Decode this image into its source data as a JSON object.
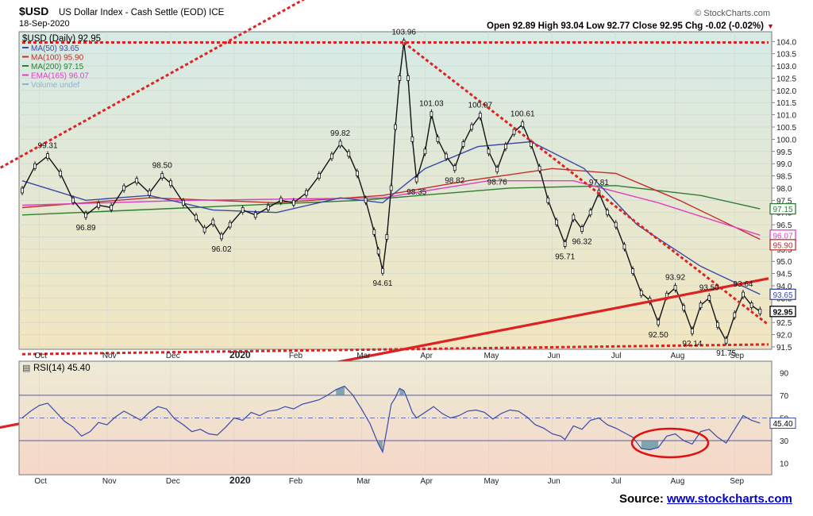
{
  "header": {
    "symbol": "$USD",
    "description": "US Dollar Index - Cash Settle (EOD) ICE",
    "date": "18-Sep-2020",
    "brand": "© StockCharts.com",
    "ohlc": "Open 92.89 High 93.04 Low 92.77 Close 92.95 Chg -0.02 (-0.02%)"
  },
  "legend": {
    "main": "$USD (Daily) 92.95",
    "items": [
      {
        "label": "MA(50) 93.65",
        "color": "#3a48a8"
      },
      {
        "label": "MA(100) 95.90",
        "color": "#c0302a"
      },
      {
        "label": "MA(200) 97.15",
        "color": "#2e7d32"
      },
      {
        "label": "EMA(165) 96.07",
        "color": "#e040c0"
      },
      {
        "label": "Volume undef",
        "color": "#8fb0d8"
      }
    ]
  },
  "rsi": {
    "label": "RSI(14) 45.40",
    "value_tag": "45.40",
    "levels": [
      90,
      70,
      50,
      30,
      10
    ]
  },
  "source": {
    "prefix": "Source: ",
    "link": "www.stockcharts.com"
  },
  "chart_data": {
    "type": "line",
    "title": "US Dollar Index - Cash Settle (EOD) ICE",
    "ylim": [
      91.4,
      104.4
    ],
    "yticks": [
      91.5,
      92.0,
      92.5,
      93.0,
      93.5,
      94.0,
      94.5,
      95.0,
      95.5,
      96.0,
      96.5,
      97.0,
      97.5,
      98.0,
      98.5,
      99.0,
      99.5,
      100.0,
      100.5,
      101.0,
      101.5,
      102.0,
      102.5,
      103.0,
      103.5,
      104.0
    ],
    "xticks": [
      "Oct",
      "Nov",
      "Dec",
      "2020",
      "Feb",
      "Mar",
      "Apr",
      "May",
      "Jun",
      "Jul",
      "Aug",
      "Sep"
    ],
    "price_points": [
      [
        0,
        97.9
      ],
      [
        6,
        98.9
      ],
      [
        12,
        99.31
      ],
      [
        18,
        98.6
      ],
      [
        24,
        97.5
      ],
      [
        30,
        96.89
      ],
      [
        36,
        97.3
      ],
      [
        42,
        97.2
      ],
      [
        48,
        98.0
      ],
      [
        54,
        98.3
      ],
      [
        60,
        97.8
      ],
      [
        66,
        98.5
      ],
      [
        70,
        98.2
      ],
      [
        76,
        97.4
      ],
      [
        82,
        96.8
      ],
      [
        86,
        96.3
      ],
      [
        90,
        96.6
      ],
      [
        94,
        96.02
      ],
      [
        98,
        96.5
      ],
      [
        104,
        97.1
      ],
      [
        110,
        96.9
      ],
      [
        116,
        97.2
      ],
      [
        122,
        97.5
      ],
      [
        128,
        97.4
      ],
      [
        134,
        97.8
      ],
      [
        140,
        98.5
      ],
      [
        146,
        99.3
      ],
      [
        150,
        99.82
      ],
      [
        154,
        99.4
      ],
      [
        158,
        98.6
      ],
      [
        162,
        97.5
      ],
      [
        166,
        96.2
      ],
      [
        168,
        95.4
      ],
      [
        170,
        94.61
      ],
      [
        172,
        96.0
      ],
      [
        174,
        98.0
      ],
      [
        176,
        100.5
      ],
      [
        178,
        102.5
      ],
      [
        180,
        103.96
      ],
      [
        182,
        102.5
      ],
      [
        184,
        100.0
      ],
      [
        186,
        98.35
      ],
      [
        190,
        99.5
      ],
      [
        193,
        101.03
      ],
      [
        196,
        100.0
      ],
      [
        200,
        99.3
      ],
      [
        204,
        98.82
      ],
      [
        208,
        99.8
      ],
      [
        212,
        100.5
      ],
      [
        216,
        100.97
      ],
      [
        220,
        99.5
      ],
      [
        224,
        98.76
      ],
      [
        228,
        99.7
      ],
      [
        232,
        100.3
      ],
      [
        236,
        100.61
      ],
      [
        240,
        99.8
      ],
      [
        244,
        98.8
      ],
      [
        248,
        97.5
      ],
      [
        252,
        96.6
      ],
      [
        256,
        95.71
      ],
      [
        260,
        96.8
      ],
      [
        264,
        96.32
      ],
      [
        268,
        97.0
      ],
      [
        272,
        97.81
      ],
      [
        276,
        97.0
      ],
      [
        280,
        96.5
      ],
      [
        284,
        95.6
      ],
      [
        288,
        94.6
      ],
      [
        292,
        93.7
      ],
      [
        296,
        93.4
      ],
      [
        300,
        92.5
      ],
      [
        304,
        93.6
      ],
      [
        308,
        93.92
      ],
      [
        312,
        93.1
      ],
      [
        316,
        92.14
      ],
      [
        320,
        93.2
      ],
      [
        324,
        93.5
      ],
      [
        328,
        92.4
      ],
      [
        332,
        91.75
      ],
      [
        336,
        92.8
      ],
      [
        340,
        93.64
      ],
      [
        344,
        93.2
      ],
      [
        348,
        92.95
      ]
    ],
    "ma50_points": [
      [
        0,
        98.3
      ],
      [
        30,
        97.5
      ],
      [
        60,
        97.7
      ],
      [
        90,
        97.1
      ],
      [
        120,
        97.0
      ],
      [
        150,
        97.6
      ],
      [
        170,
        97.4
      ],
      [
        190,
        98.8
      ],
      [
        215,
        99.7
      ],
      [
        240,
        99.9
      ],
      [
        265,
        98.8
      ],
      [
        290,
        96.5
      ],
      [
        320,
        94.8
      ],
      [
        348,
        93.65
      ]
    ],
    "ma100_points": [
      [
        0,
        97.2
      ],
      [
        60,
        97.6
      ],
      [
        120,
        97.4
      ],
      [
        170,
        97.7
      ],
      [
        210,
        98.3
      ],
      [
        250,
        98.8
      ],
      [
        280,
        98.6
      ],
      [
        310,
        97.5
      ],
      [
        348,
        95.9
      ]
    ],
    "ma200_points": [
      [
        0,
        96.9
      ],
      [
        80,
        97.2
      ],
      [
        160,
        97.5
      ],
      [
        230,
        98.0
      ],
      [
        280,
        98.1
      ],
      [
        320,
        97.7
      ],
      [
        348,
        97.15
      ]
    ],
    "ema165_points": [
      [
        0,
        97.3
      ],
      [
        80,
        97.5
      ],
      [
        170,
        97.6
      ],
      [
        220,
        98.3
      ],
      [
        260,
        98.3
      ],
      [
        300,
        97.4
      ],
      [
        348,
        96.07
      ]
    ],
    "price_labels": [
      {
        "text": "99.31",
        "i": 12,
        "v": 99.31,
        "pos": "above"
      },
      {
        "text": "96.89",
        "i": 30,
        "v": 96.89,
        "pos": "below"
      },
      {
        "text": "98.50",
        "i": 66,
        "v": 98.5,
        "pos": "above"
      },
      {
        "text": "96.02",
        "i": 94,
        "v": 96.02,
        "pos": "below"
      },
      {
        "text": "99.82",
        "i": 150,
        "v": 99.82,
        "pos": "above"
      },
      {
        "text": "94.61",
        "i": 170,
        "v": 94.61,
        "pos": "below"
      },
      {
        "text": "103.96",
        "i": 180,
        "v": 103.96,
        "pos": "above"
      },
      {
        "text": "98.35",
        "i": 186,
        "v": 98.35,
        "pos": "below"
      },
      {
        "text": "101.03",
        "i": 193,
        "v": 101.03,
        "pos": "above"
      },
      {
        "text": "98.82",
        "i": 204,
        "v": 98.82,
        "pos": "below"
      },
      {
        "text": "100.97",
        "i": 216,
        "v": 100.97,
        "pos": "above"
      },
      {
        "text": "98.76",
        "i": 224,
        "v": 98.76,
        "pos": "below"
      },
      {
        "text": "100.61",
        "i": 236,
        "v": 100.61,
        "pos": "above"
      },
      {
        "text": "95.71",
        "i": 256,
        "v": 95.71,
        "pos": "below"
      },
      {
        "text": "96.32",
        "i": 264,
        "v": 96.32,
        "pos": "below"
      },
      {
        "text": "97.81",
        "i": 272,
        "v": 97.81,
        "pos": "above"
      },
      {
        "text": "92.50",
        "i": 300,
        "v": 92.5,
        "pos": "below"
      },
      {
        "text": "93.92",
        "i": 308,
        "v": 93.92,
        "pos": "above"
      },
      {
        "text": "92.14",
        "i": 316,
        "v": 92.14,
        "pos": "below"
      },
      {
        "text": "93.50",
        "i": 324,
        "v": 93.5,
        "pos": "above"
      },
      {
        "text": "91.75",
        "i": 332,
        "v": 91.75,
        "pos": "below"
      },
      {
        "text": "93.64",
        "i": 340,
        "v": 93.64,
        "pos": "above"
      }
    ],
    "right_tags": [
      {
        "text": "97.15",
        "v": 97.15,
        "color": "#2e7d32"
      },
      {
        "text": "96.07",
        "v": 96.07,
        "color": "#e040c0"
      },
      {
        "text": "95.90",
        "v": 95.9,
        "color": "#c0302a"
      },
      {
        "text": "93.65",
        "v": 93.65,
        "color": "#3a48a8"
      },
      {
        "text": "92.95",
        "v": 92.95,
        "color": "#000000"
      }
    ],
    "trendlines": [
      {
        "name": "upper-dotted-rising",
        "from": [
          -40,
          97.4
        ],
        "to": [
          180,
          108.0
        ],
        "color": "#dd2222",
        "style": "dotted"
      },
      {
        "name": "horizontal-resistance-104",
        "from": [
          0,
          103.96
        ],
        "to": [
          352,
          103.96
        ],
        "color": "#dd2222",
        "style": "dotted"
      },
      {
        "name": "falling-dotted",
        "from": [
          180,
          103.96
        ],
        "to": [
          352,
          92.4
        ],
        "color": "#dd2222",
        "style": "dotted"
      },
      {
        "name": "rising-solid-support",
        "from": [
          -40,
          87.7
        ],
        "to": [
          352,
          94.3
        ],
        "color": "#dd2222",
        "style": "solid"
      },
      {
        "name": "bottom-dotted-support",
        "from": [
          0,
          91.2
        ],
        "to": [
          352,
          91.6
        ],
        "color": "#dd2222",
        "style": "dotted"
      }
    ],
    "rsi_points": [
      [
        0,
        50
      ],
      [
        4,
        56
      ],
      [
        8,
        61
      ],
      [
        12,
        63
      ],
      [
        16,
        55
      ],
      [
        20,
        47
      ],
      [
        24,
        42
      ],
      [
        28,
        34
      ],
      [
        32,
        38
      ],
      [
        36,
        46
      ],
      [
        40,
        44
      ],
      [
        44,
        51
      ],
      [
        48,
        56
      ],
      [
        52,
        52
      ],
      [
        56,
        48
      ],
      [
        60,
        55
      ],
      [
        64,
        60
      ],
      [
        68,
        58
      ],
      [
        72,
        49
      ],
      [
        76,
        44
      ],
      [
        80,
        38
      ],
      [
        84,
        40
      ],
      [
        88,
        36
      ],
      [
        92,
        35
      ],
      [
        96,
        42
      ],
      [
        100,
        50
      ],
      [
        104,
        48
      ],
      [
        108,
        55
      ],
      [
        112,
        52
      ],
      [
        116,
        56
      ],
      [
        120,
        57
      ],
      [
        124,
        60
      ],
      [
        128,
        58
      ],
      [
        132,
        62
      ],
      [
        136,
        64
      ],
      [
        140,
        66
      ],
      [
        144,
        70
      ],
      [
        148,
        75
      ],
      [
        152,
        78
      ],
      [
        156,
        70
      ],
      [
        160,
        58
      ],
      [
        164,
        45
      ],
      [
        168,
        27
      ],
      [
        170,
        20
      ],
      [
        172,
        40
      ],
      [
        174,
        62
      ],
      [
        176,
        68
      ],
      [
        178,
        76
      ],
      [
        180,
        74
      ],
      [
        182,
        65
      ],
      [
        184,
        55
      ],
      [
        186,
        50
      ],
      [
        190,
        55
      ],
      [
        194,
        60
      ],
      [
        198,
        54
      ],
      [
        202,
        50
      ],
      [
        206,
        52
      ],
      [
        210,
        56
      ],
      [
        214,
        57
      ],
      [
        218,
        55
      ],
      [
        222,
        49
      ],
      [
        226,
        54
      ],
      [
        230,
        57
      ],
      [
        234,
        56
      ],
      [
        238,
        51
      ],
      [
        242,
        44
      ],
      [
        246,
        41
      ],
      [
        250,
        36
      ],
      [
        254,
        34
      ],
      [
        256,
        31
      ],
      [
        260,
        43
      ],
      [
        264,
        40
      ],
      [
        268,
        48
      ],
      [
        272,
        50
      ],
      [
        276,
        44
      ],
      [
        280,
        41
      ],
      [
        284,
        37
      ],
      [
        288,
        33
      ],
      [
        292,
        23
      ],
      [
        296,
        22
      ],
      [
        300,
        24
      ],
      [
        304,
        34
      ],
      [
        308,
        36
      ],
      [
        312,
        30
      ],
      [
        316,
        27
      ],
      [
        320,
        38
      ],
      [
        324,
        40
      ],
      [
        328,
        33
      ],
      [
        332,
        28
      ],
      [
        336,
        40
      ],
      [
        340,
        52
      ],
      [
        344,
        48
      ],
      [
        348,
        45.4
      ]
    ]
  }
}
